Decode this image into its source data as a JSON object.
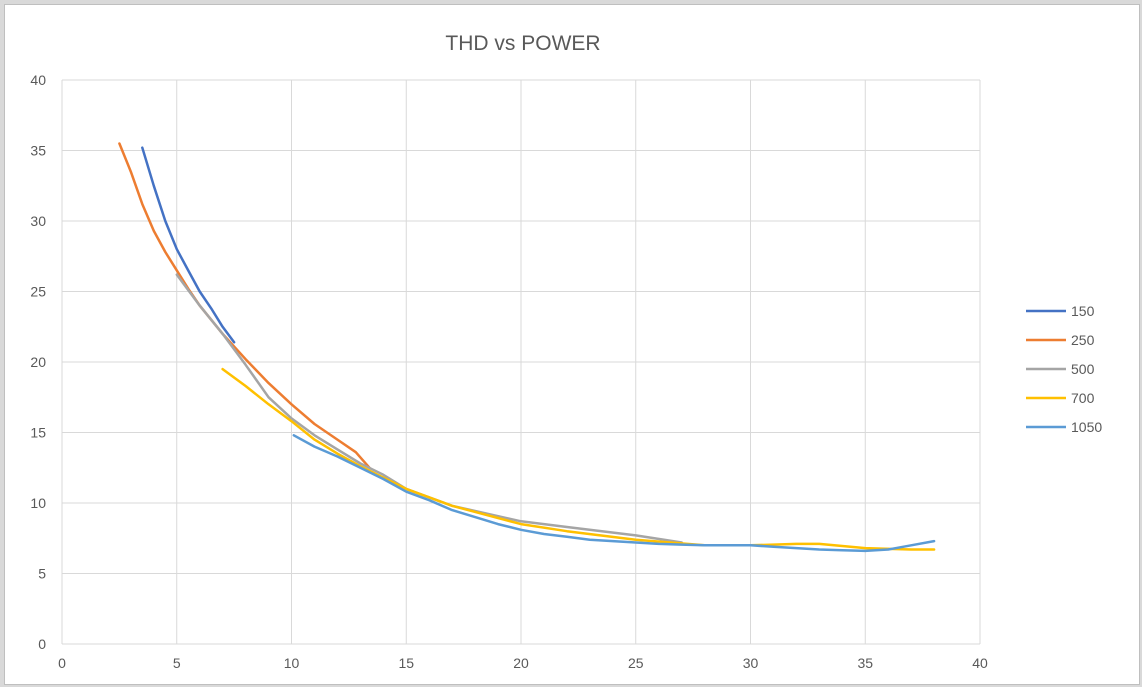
{
  "chart_data": {
    "type": "line",
    "title": "THD vs POWER",
    "xlabel": "",
    "ylabel": "",
    "xlim": [
      0,
      40
    ],
    "ylim": [
      0,
      40
    ],
    "x_ticks": [
      0,
      5,
      10,
      15,
      20,
      25,
      30,
      35,
      40
    ],
    "y_ticks": [
      0,
      5,
      10,
      15,
      20,
      25,
      30,
      35,
      40
    ],
    "grid": true,
    "legend_position": "right",
    "series": [
      {
        "name": "150",
        "color": "#4472C4",
        "x": [
          3.5,
          4.0,
          4.5,
          5.0,
          5.5,
          6.0,
          6.5,
          7.0,
          7.5
        ],
        "y": [
          35.2,
          32.5,
          30.0,
          28.0,
          26.5,
          25.0,
          23.8,
          22.5,
          21.4
        ]
      },
      {
        "name": "250",
        "color": "#ED7D31",
        "x": [
          2.5,
          3.0,
          3.5,
          4.0,
          4.5,
          5.0,
          5.5,
          6.0,
          7.0,
          8.0,
          9.0,
          10.0,
          11.0,
          12.0,
          12.8,
          13.4
        ],
        "y": [
          35.5,
          33.5,
          31.2,
          29.3,
          27.8,
          26.5,
          25.2,
          24.0,
          22.0,
          20.2,
          18.5,
          17.0,
          15.6,
          14.5,
          13.6,
          12.5
        ]
      },
      {
        "name": "500",
        "color": "#A5A5A5",
        "x": [
          5.0,
          6.0,
          7.0,
          8.0,
          9.0,
          10.0,
          11.0,
          12.0,
          13.0,
          14.0,
          15.0,
          17.0,
          20.0,
          22.0,
          25.0,
          27.0
        ],
        "y": [
          26.2,
          24.0,
          22.0,
          19.8,
          17.5,
          16.0,
          14.8,
          13.8,
          12.8,
          12.0,
          11.0,
          9.8,
          8.7,
          8.3,
          7.7,
          7.2
        ]
      },
      {
        "name": "700",
        "color": "#FFC000",
        "x": [
          7.0,
          8.0,
          9.0,
          10.0,
          11.0,
          12.0,
          13.0,
          14.0,
          15.0,
          17.0,
          20.0,
          22.0,
          25.0,
          28.0,
          30.0,
          32.0,
          33.0,
          35.0,
          37.0,
          38.0
        ],
        "y": [
          19.5,
          18.3,
          17.0,
          15.8,
          14.5,
          13.5,
          12.6,
          11.8,
          11.0,
          9.8,
          8.5,
          8.0,
          7.4,
          7.0,
          7.0,
          7.1,
          7.1,
          6.8,
          6.7,
          6.7
        ]
      },
      {
        "name": "1050",
        "color": "#5B9BD5",
        "x": [
          10.1,
          11.0,
          12.0,
          13.0,
          14.0,
          15.0,
          16.0,
          17.0,
          18.0,
          19.0,
          20.0,
          21.0,
          22.0,
          23.0,
          24.0,
          25.0,
          26.0,
          27.0,
          28.0,
          29.0,
          30.0,
          31.0,
          32.0,
          33.0,
          34.0,
          35.0,
          36.0,
          37.0,
          38.0
        ],
        "y": [
          14.8,
          14.0,
          13.3,
          12.5,
          11.7,
          10.8,
          10.2,
          9.5,
          9.0,
          8.5,
          8.1,
          7.8,
          7.6,
          7.4,
          7.3,
          7.2,
          7.1,
          7.05,
          7.0,
          7.0,
          7.0,
          6.9,
          6.8,
          6.7,
          6.65,
          6.6,
          6.7,
          7.0,
          7.3
        ]
      }
    ]
  }
}
